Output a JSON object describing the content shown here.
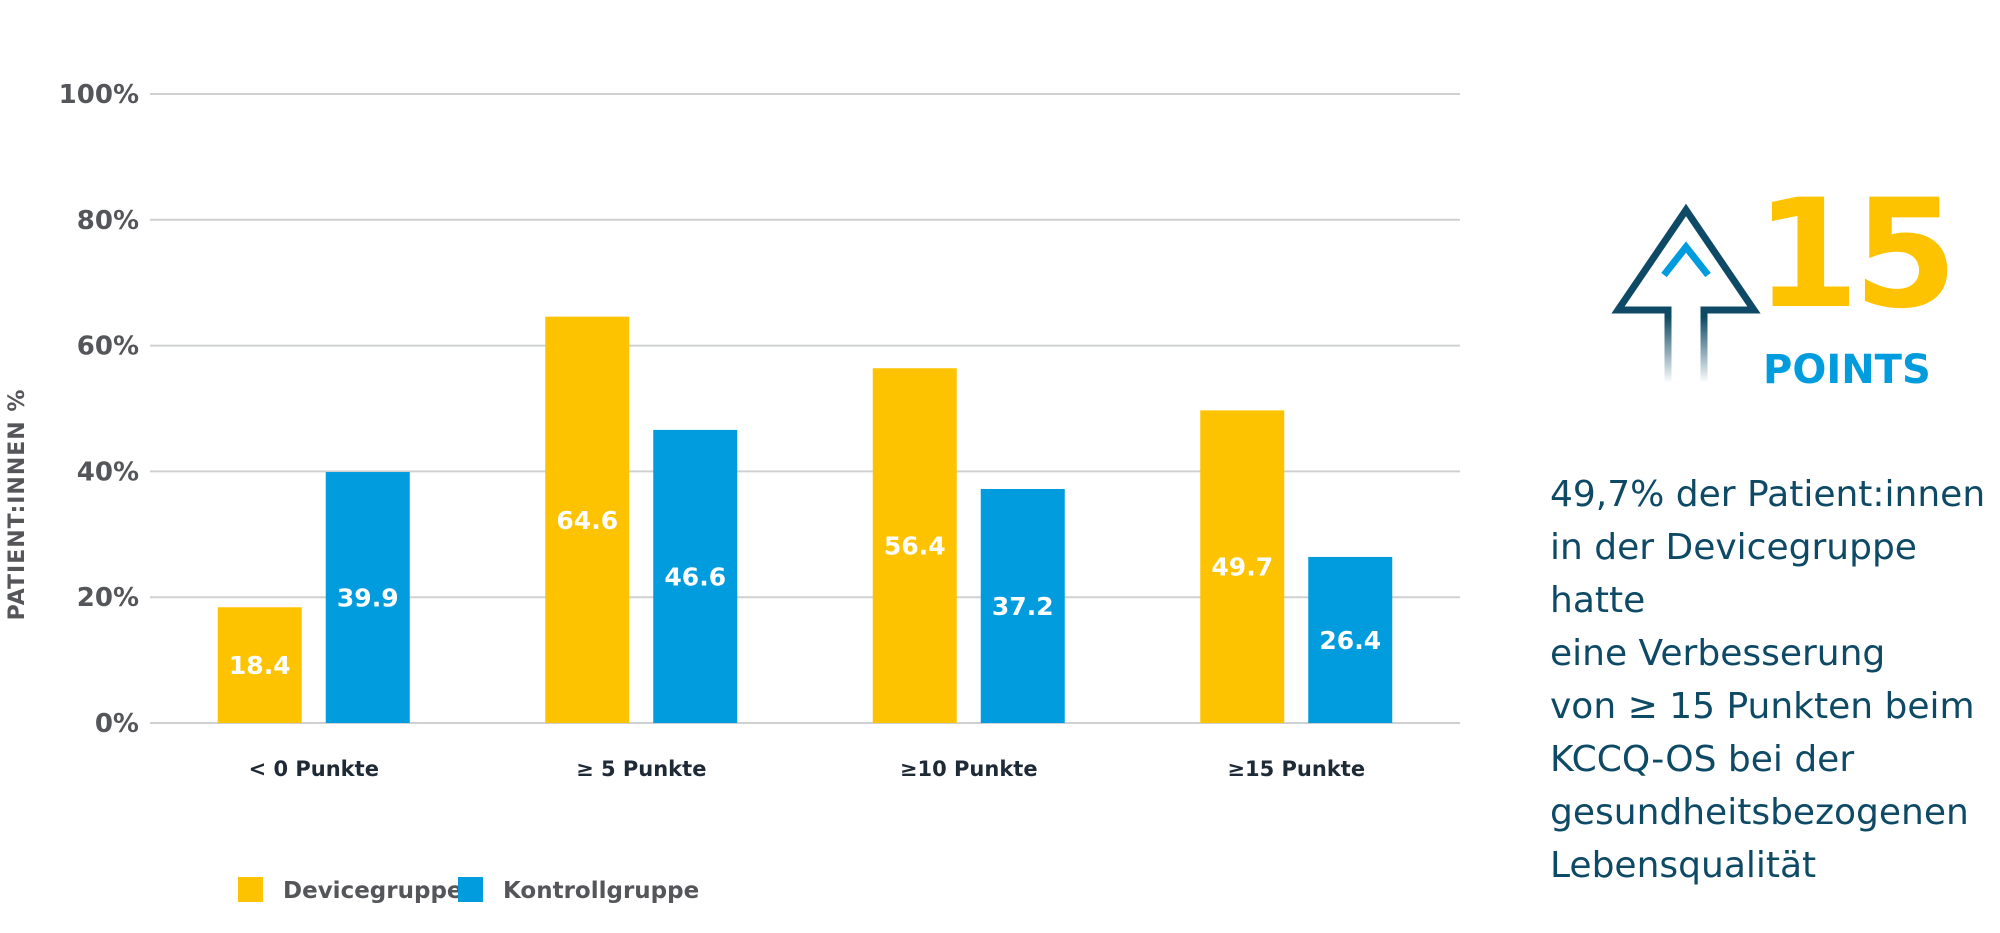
{
  "chart_data": {
    "type": "bar",
    "ylabel": "PATIENT:INNEN %",
    "xlabel": "",
    "ylim": [
      0,
      100
    ],
    "yticks": [
      "0%",
      "20%",
      "40%",
      "60%",
      "80%",
      "100%"
    ],
    "grid": true,
    "legend_position": "bottom-left",
    "categories": [
      "< 0 Punkte",
      "≥ 5 Punkte",
      "≥10 Punkte",
      "≥15 Punkte"
    ],
    "series": [
      {
        "name": "Devicegruppe",
        "color": "#fdc300",
        "values": [
          18.4,
          64.6,
          56.4,
          49.7
        ]
      },
      {
        "name": "Kontrollgruppe",
        "color": "#009cde",
        "values": [
          39.9,
          46.6,
          37.2,
          26.4
        ]
      }
    ]
  },
  "badge": {
    "number": "15",
    "unit": "POINTS",
    "icon": "up-arrow-icon",
    "number_color": "#fdc300",
    "unit_color": "#009cde",
    "arrow_color": "#0e4a66"
  },
  "note": {
    "text": "49,7% der Patient:innen\nin der Devicegruppe hatte\neine Verbesserung\nvon ≥ 15 Punkten beim\nKCCQ-OS bei der\ngesundheitsbezogenen\nLebensqualität"
  }
}
